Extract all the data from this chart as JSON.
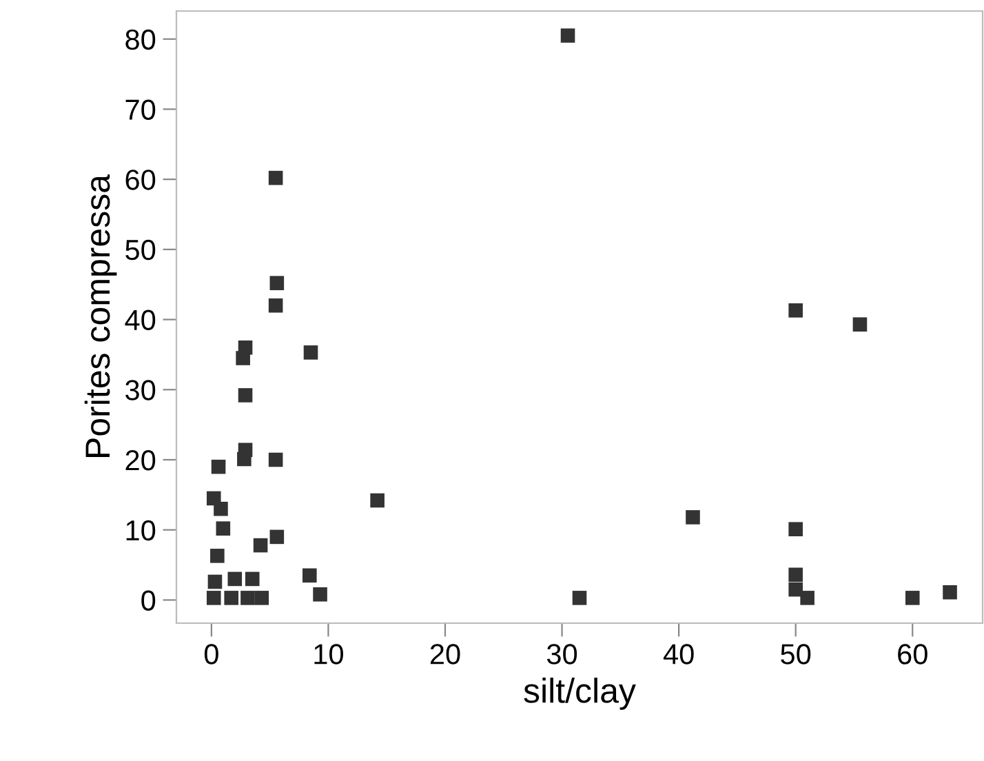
{
  "chart_data": {
    "type": "scatter",
    "xlabel": "silt/clay",
    "ylabel": "Porites compressa",
    "xlim": [
      -3,
      66
    ],
    "ylim": [
      -3.3,
      84
    ],
    "xticks": [
      0,
      10,
      20,
      30,
      40,
      50,
      60
    ],
    "yticks": [
      0,
      10,
      20,
      30,
      40,
      50,
      60,
      70,
      80
    ],
    "marker": "square",
    "grid": false,
    "series": [
      {
        "color": "#333333",
        "x": [
          0.2,
          1.7,
          3.1,
          4.3,
          0.3,
          0.5,
          2,
          3.5,
          0.2,
          0.8,
          0.6,
          1,
          4.2,
          5.6,
          5.5,
          5.5,
          5.6,
          5.5,
          2.8,
          2.9,
          2.9,
          2.7,
          2.9,
          8.5,
          8.4,
          9.3,
          14.2,
          30.5,
          31.5,
          41.2,
          50,
          55.5,
          50,
          50,
          50,
          51,
          60,
          63.2
        ],
        "values": [
          0.3,
          0.3,
          0.3,
          0.3,
          2.6,
          6.3,
          3,
          3,
          14.5,
          13,
          19,
          10.2,
          7.8,
          9,
          20,
          42,
          45.2,
          60.2,
          20.1,
          21.4,
          29.2,
          34.5,
          36,
          35.3,
          3.5,
          0.8,
          14.2,
          80.5,
          0.3,
          11.8,
          41.3,
          39.3,
          10.1,
          3.6,
          1.5,
          0.3,
          0.3,
          1.1
        ]
      }
    ]
  }
}
